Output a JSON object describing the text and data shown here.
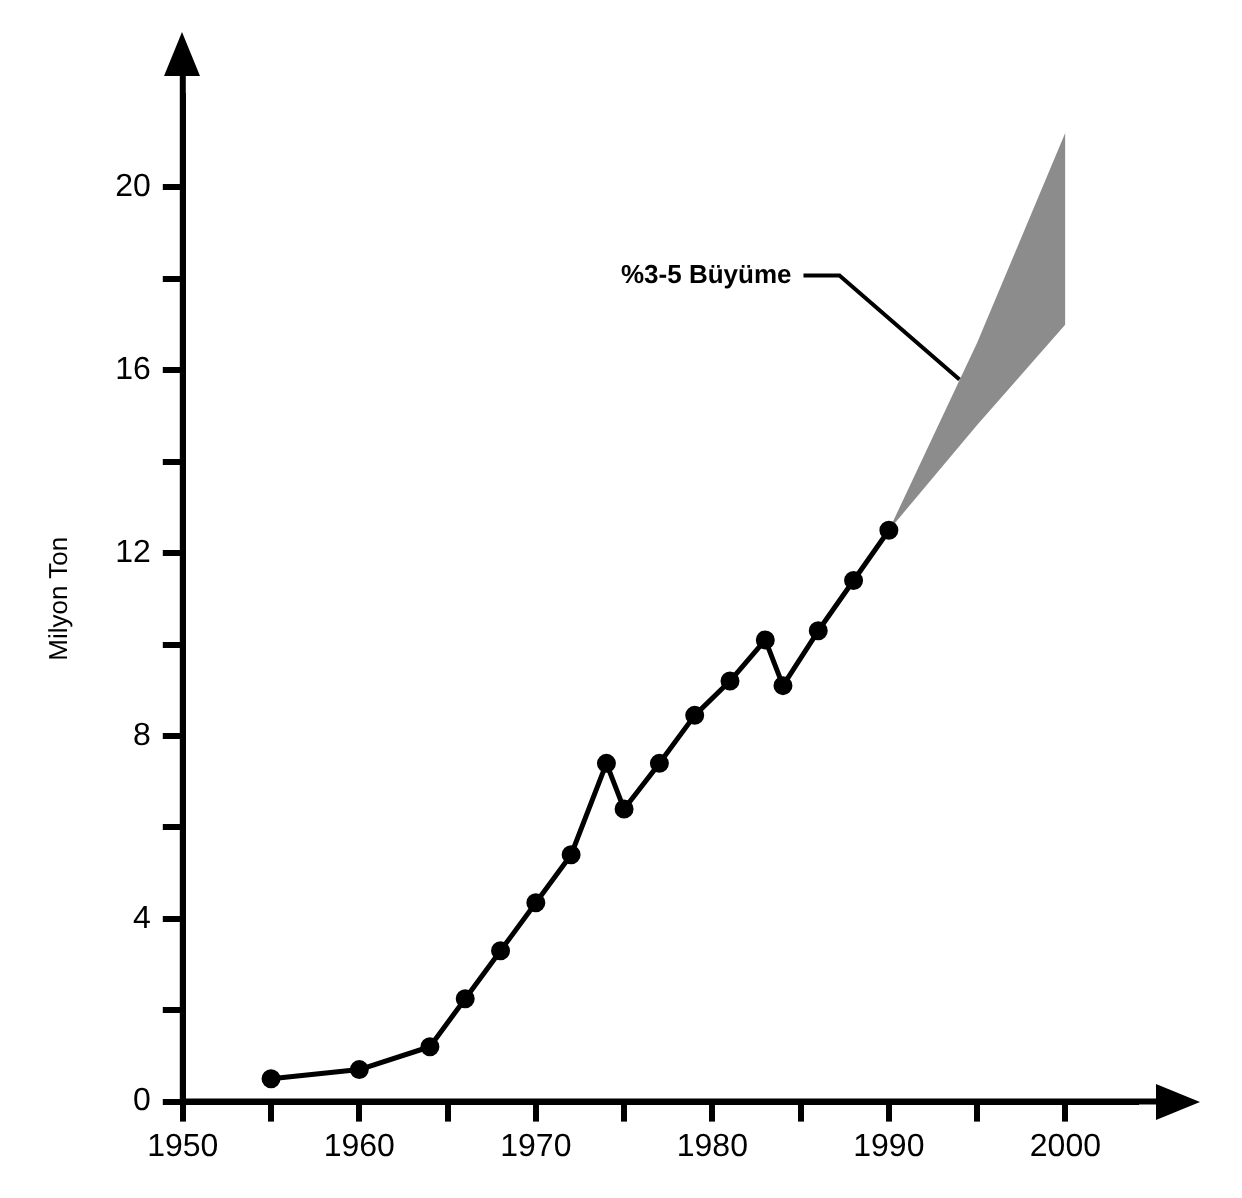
{
  "chart_data": {
    "type": "line",
    "ylabel": "Milyon Ton",
    "series": [
      {
        "color": "#000000",
        "x": [
          1955,
          1960,
          1964,
          1966,
          1968,
          1970,
          1972,
          1974,
          1975,
          1977,
          1979,
          1981,
          1983,
          1984,
          1986,
          1988,
          1990
        ],
        "values": [
          0.5,
          0.7,
          1.2,
          2.25,
          3.3,
          4.35,
          5.4,
          7.4,
          6.4,
          7.4,
          8.45,
          9.2,
          10.1,
          9.1,
          10.3,
          11.4,
          12.5
        ]
      },
      {
        "color": "#000000",
        "x": [
          1990,
          1995,
          2000
        ],
        "values": [
          null,
          null,
          null
        ],
        "lower": [
          12.5,
          14.8,
          17.0
        ],
        "upper": [
          12.5,
          16.6,
          21.2
        ]
      }
    ],
    "xlim": [
      1950,
      2004
    ],
    "xticks": [
      1950,
      {
        "value": 1955,
        "label": null
      },
      1960,
      {
        "value": 1965,
        "label": null
      },
      1970,
      {
        "value": 1975,
        "label": null
      },
      1980,
      {
        "value": 1985,
        "label": null
      },
      1990,
      {
        "value": 1995,
        "label": null
      },
      2000
    ],
    "ylim": [
      0,
      22
    ],
    "yticks": [
      0,
      {
        "value": 2,
        "label": null
      },
      4,
      {
        "value": 6,
        "label": null
      },
      8,
      {
        "value": 10,
        "label": null
      },
      12,
      {
        "value": 14,
        "label": null
      },
      16,
      {
        "value": 18,
        "label": null
      },
      20
    ],
    "annotations": [
      {
        "text": "%3-5 Büyüme",
        "x": 1994,
        "y": 15.8
      }
    ],
    "grid": false,
    "legend": false,
    "marker": "circle",
    "line_style": "solid"
  }
}
